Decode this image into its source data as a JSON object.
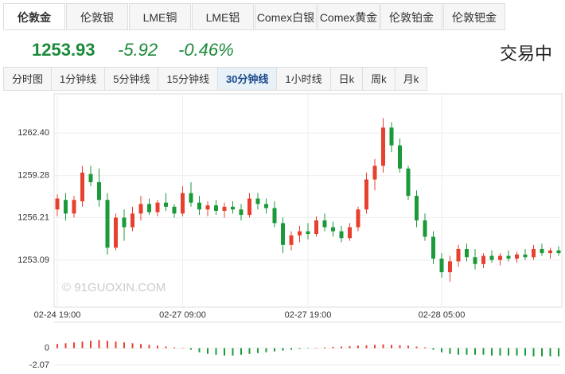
{
  "market_tabs": {
    "items": [
      "伦敦金",
      "伦敦银",
      "LME铜",
      "LME铝",
      "Comex白银",
      "Comex黄金",
      "伦敦铂金",
      "伦敦钯金"
    ],
    "selected": 0
  },
  "quote": {
    "price": "1253.93",
    "change": "-5.92",
    "change_pct": "-0.46%",
    "status": "交易中"
  },
  "period_tabs": {
    "items": [
      "分时图",
      "1分钟线",
      "5分钟线",
      "15分钟线",
      "30分钟线",
      "1小时线",
      "日k",
      "周k",
      "月k"
    ],
    "selected": 4
  },
  "watermark": "© 91GUOXIN.COM",
  "chart_data": {
    "type": "candlestick",
    "up_color": "#e8402f",
    "down_color": "#1b9a3a",
    "ylim": [
      1249.64,
      1265.27
    ],
    "yticks": [
      {
        "value": 1262.4,
        "label": "1262.40"
      },
      1259.28,
      1256.21,
      1253.09
    ],
    "categories": [
      "02-24 19:00",
      null,
      null,
      null,
      null,
      null,
      null,
      null,
      null,
      null,
      null,
      null,
      null,
      null,
      null,
      "02-27 09:00",
      null,
      null,
      null,
      null,
      null,
      null,
      null,
      null,
      null,
      null,
      null,
      null,
      null,
      null,
      "02-27 19:00",
      null,
      null,
      null,
      null,
      null,
      null,
      null,
      null,
      null,
      null,
      null,
      null,
      null,
      null,
      null,
      "02-28 05:00",
      null,
      null,
      null,
      null,
      null,
      null,
      null,
      null,
      null,
      null,
      null,
      null,
      null,
      null
    ],
    "ohlc": [
      [
        1256.8,
        1257.9,
        1256.3,
        1257.6
      ],
      [
        1257.5,
        1258.0,
        1256.0,
        1256.5
      ],
      [
        1256.5,
        1257.8,
        1256.2,
        1257.5
      ],
      [
        1257.4,
        1260.0,
        1257.0,
        1259.5
      ],
      [
        1259.4,
        1260.0,
        1258.5,
        1258.8
      ],
      [
        1258.8,
        1259.8,
        1257.0,
        1257.5
      ],
      [
        1257.5,
        1258.0,
        1253.5,
        1254.0
      ],
      [
        1254.0,
        1256.5,
        1253.8,
        1256.2
      ],
      [
        1256.2,
        1256.8,
        1254.5,
        1255.5
      ],
      [
        1255.5,
        1257.0,
        1255.2,
        1256.5
      ],
      [
        1256.5,
        1257.8,
        1256.0,
        1257.2
      ],
      [
        1257.2,
        1257.6,
        1256.4,
        1256.6
      ],
      [
        1256.6,
        1257.5,
        1256.3,
        1257.3
      ],
      [
        1257.3,
        1258.0,
        1256.7,
        1257.0
      ],
      [
        1257.0,
        1257.2,
        1256.2,
        1256.5
      ],
      [
        1256.5,
        1258.5,
        1256.3,
        1258.0
      ],
      [
        1258.0,
        1258.8,
        1257.0,
        1257.3
      ],
      [
        1257.3,
        1257.8,
        1256.4,
        1256.8
      ],
      [
        1256.8,
        1257.4,
        1256.3,
        1257.1
      ],
      [
        1257.1,
        1257.5,
        1256.4,
        1256.7
      ],
      [
        1256.7,
        1257.3,
        1256.2,
        1257.0
      ],
      [
        1257.0,
        1257.4,
        1256.5,
        1256.8
      ],
      [
        1256.8,
        1257.2,
        1256.0,
        1256.4
      ],
      [
        1256.4,
        1258.0,
        1256.2,
        1257.6
      ],
      [
        1257.6,
        1258.0,
        1256.8,
        1257.2
      ],
      [
        1257.2,
        1257.6,
        1256.5,
        1256.9
      ],
      [
        1256.9,
        1257.4,
        1255.5,
        1255.8
      ],
      [
        1255.8,
        1256.2,
        1253.6,
        1254.2
      ],
      [
        1254.2,
        1255.2,
        1253.8,
        1254.9
      ],
      [
        1254.9,
        1255.6,
        1254.4,
        1255.2
      ],
      [
        1255.2,
        1255.8,
        1254.6,
        1255.0
      ],
      [
        1255.0,
        1256.3,
        1254.8,
        1256.0
      ],
      [
        1256.0,
        1256.5,
        1255.2,
        1255.5
      ],
      [
        1255.5,
        1255.9,
        1254.8,
        1255.2
      ],
      [
        1255.2,
        1255.6,
        1254.4,
        1254.7
      ],
      [
        1254.7,
        1255.8,
        1254.5,
        1255.5
      ],
      [
        1255.5,
        1257.0,
        1255.2,
        1256.8
      ],
      [
        1256.8,
        1259.5,
        1256.5,
        1259.0
      ],
      [
        1259.0,
        1260.5,
        1258.2,
        1260.0
      ],
      [
        1260.0,
        1263.5,
        1259.5,
        1262.8
      ],
      [
        1262.8,
        1263.2,
        1261.0,
        1261.5
      ],
      [
        1261.5,
        1262.0,
        1259.5,
        1259.8
      ],
      [
        1259.8,
        1260.0,
        1257.5,
        1257.8
      ],
      [
        1257.8,
        1258.2,
        1255.5,
        1256.0
      ],
      [
        1256.0,
        1256.5,
        1254.5,
        1254.8
      ],
      [
        1254.8,
        1255.2,
        1252.8,
        1253.2
      ],
      [
        1253.2,
        1253.6,
        1251.8,
        1252.2
      ],
      [
        1252.2,
        1253.4,
        1251.5,
        1253.0
      ],
      [
        1253.0,
        1254.2,
        1252.6,
        1253.9
      ],
      [
        1253.9,
        1254.3,
        1253.0,
        1253.3
      ],
      [
        1253.3,
        1253.9,
        1252.4,
        1252.8
      ],
      [
        1252.8,
        1253.6,
        1252.5,
        1253.4
      ],
      [
        1253.4,
        1253.8,
        1252.9,
        1253.1
      ],
      [
        1253.1,
        1253.6,
        1252.7,
        1253.4
      ],
      [
        1253.4,
        1253.8,
        1253.0,
        1253.2
      ],
      [
        1253.2,
        1253.7,
        1252.9,
        1253.5
      ],
      [
        1253.5,
        1253.9,
        1253.1,
        1253.3
      ],
      [
        1253.3,
        1254.2,
        1253.1,
        1253.9
      ],
      [
        1253.9,
        1254.3,
        1253.4,
        1253.6
      ],
      [
        1253.6,
        1254.0,
        1253.2,
        1253.8
      ],
      [
        1253.8,
        1254.1,
        1253.4,
        1253.6
      ]
    ],
    "macd": {
      "ylim": [
        -2.76,
        3.15
      ],
      "yticks": [
        0,
        -2.07
      ],
      "values": [
        0.5,
        0.6,
        0.7,
        0.8,
        0.9,
        1.0,
        0.9,
        0.8,
        0.7,
        0.6,
        0.5,
        0.4,
        0.3,
        0.2,
        0.1,
        0.05,
        -0.2,
        -0.5,
        -0.7,
        -0.8,
        -0.9,
        -0.9,
        -0.8,
        -0.7,
        -0.6,
        -0.5,
        -0.4,
        -0.3,
        -0.2,
        -0.1,
        -0.05,
        0.05,
        0.1,
        0.15,
        0.2,
        0.25,
        0.3,
        0.35,
        0.4,
        0.45,
        0.4,
        0.35,
        0.3,
        0.2,
        0.1,
        -0.2,
        -0.5,
        -0.7,
        -0.8,
        -0.8,
        -0.8,
        -0.8,
        -0.9,
        -0.9,
        -0.9,
        -0.9,
        -0.9,
        -1.0,
        -1.0,
        -1.0,
        -1.0
      ]
    }
  }
}
